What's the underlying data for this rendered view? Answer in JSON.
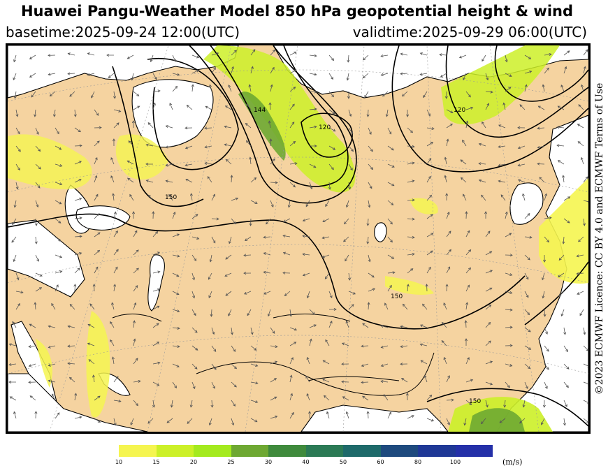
{
  "header": {
    "title": "Huawei Pangu-Weather Model 850 hPa geopotential height & wind",
    "basetime": "basetime:2025-09-24 12:00(UTC)",
    "validtime": "validtime:2025-09-29 06:00(UTC)"
  },
  "map": {
    "contour_labels": [
      "144",
      "120",
      "120",
      "150",
      "150",
      "150"
    ],
    "colors": {
      "land": "#f5d3a0",
      "ocean": "#ffffff",
      "coastline": "#000000",
      "height_contour": "#000000",
      "wind_arrow": "#555555",
      "graticule": "#999999"
    }
  },
  "credit": "©2023 ECMWF Licence: CC BY 4.0 and ECMWF Terms of Use",
  "legend": {
    "unit": "(m/s)",
    "ticks": [
      "10",
      "15",
      "20",
      "25",
      "30",
      "40",
      "50",
      "60",
      "80",
      "100"
    ],
    "colors": [
      "#f5f550",
      "#ccf028",
      "#a4ea1e",
      "#6ea832",
      "#3f8a3c",
      "#2b7a55",
      "#1e6a6a",
      "#1e4a7e",
      "#1f3896",
      "#2430a8"
    ]
  }
}
